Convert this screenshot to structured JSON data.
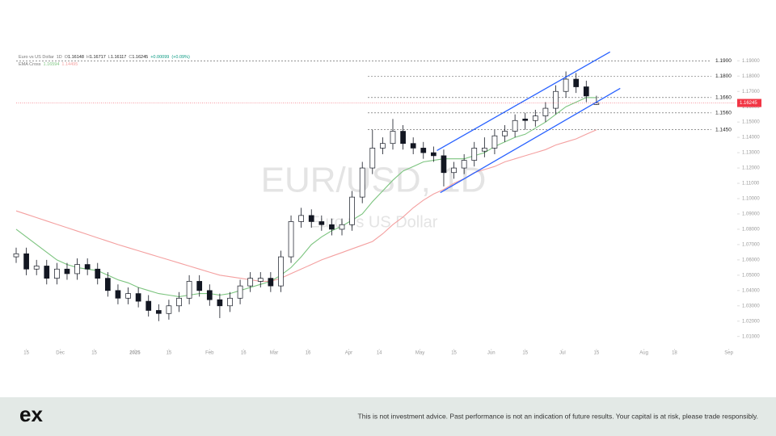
{
  "chart_data": {
    "type": "candlestick",
    "header": {
      "name": "Euro vs US Dollar",
      "interval": "1D",
      "ohlc_labels": [
        "O",
        "H",
        "L",
        "C"
      ],
      "change": "+0.00099",
      "change_pct": "(+0.09%)",
      "indicator": "EMA Cross"
    },
    "watermark": "EUR/USD, 1D",
    "watermark_subtitle": "Euro vs US Dollar",
    "xlim": [
      0,
      212
    ],
    "ylim": [
      1.003,
      1.197
    ],
    "xticks": [
      {
        "value": 3,
        "label": "15"
      },
      {
        "value": 13,
        "label": "Dec"
      },
      {
        "value": 23,
        "label": "15"
      },
      {
        "value": 35,
        "label": "2025"
      },
      {
        "value": 45,
        "label": "15"
      },
      {
        "value": 57,
        "label": "Feb"
      },
      {
        "value": 67,
        "label": "16"
      },
      {
        "value": 76,
        "label": "Mar"
      },
      {
        "value": 86,
        "label": "16"
      },
      {
        "value": 98,
        "label": "Apr"
      },
      {
        "value": 107,
        "label": "14"
      },
      {
        "value": 119,
        "label": "May"
      },
      {
        "value": 129,
        "label": "15"
      },
      {
        "value": 140,
        "label": "Jun"
      },
      {
        "value": 150,
        "label": "15"
      },
      {
        "value": 161,
        "label": "Jul"
      },
      {
        "value": 171,
        "label": "15"
      },
      {
        "value": 185,
        "label": "Aug"
      },
      {
        "value": 194,
        "label": "18"
      },
      {
        "value": 210,
        "label": "Sep"
      }
    ],
    "yticks": [
      {
        "value": 1.01,
        "label": "1.01000"
      },
      {
        "value": 1.02,
        "label": "1.02000"
      },
      {
        "value": 1.03,
        "label": "1.03000"
      },
      {
        "value": 1.04,
        "label": "1.04000"
      },
      {
        "value": 1.05,
        "label": "1.05000"
      },
      {
        "value": 1.06,
        "label": "1.06000"
      },
      {
        "value": 1.07,
        "label": "1.07000"
      },
      {
        "value": 1.08,
        "label": "1.08000"
      },
      {
        "value": 1.09,
        "label": "1.09000"
      },
      {
        "value": 1.1,
        "label": "1.10000"
      },
      {
        "value": 1.11,
        "label": "1.11000"
      },
      {
        "value": 1.12,
        "label": "1.12000"
      },
      {
        "value": 1.13,
        "label": "1.13000"
      },
      {
        "value": 1.14,
        "label": "1.14000"
      },
      {
        "value": 1.15,
        "label": "1.15000"
      },
      {
        "value": 1.16,
        "label": "1.16000"
      },
      {
        "value": 1.17,
        "label": "1.17000"
      },
      {
        "value": 1.18,
        "label": "1.18000"
      },
      {
        "value": 1.19,
        "label": "1.19000"
      }
    ],
    "x": [
      0,
      3,
      6,
      9,
      12,
      15,
      18,
      21,
      24,
      27,
      30,
      33,
      36,
      39,
      42,
      45,
      48,
      51,
      54,
      57,
      60,
      63,
      66,
      69,
      72,
      75,
      78,
      81,
      84,
      87,
      90,
      93,
      96,
      99,
      102,
      105,
      108,
      111,
      114,
      117,
      120,
      123,
      126,
      129,
      132,
      135,
      138,
      141,
      144,
      147,
      150,
      153,
      156,
      159,
      162,
      165,
      168,
      171
    ],
    "candles": [
      [
        1.062,
        1.068,
        1.058,
        1.064
      ],
      [
        1.064,
        1.068,
        1.05,
        1.054
      ],
      [
        1.054,
        1.06,
        1.05,
        1.056
      ],
      [
        1.056,
        1.06,
        1.044,
        1.048
      ],
      [
        1.048,
        1.058,
        1.044,
        1.054
      ],
      [
        1.054,
        1.058,
        1.047,
        1.051
      ],
      [
        1.051,
        1.061,
        1.047,
        1.057
      ],
      [
        1.057,
        1.061,
        1.05,
        1.054
      ],
      [
        1.054,
        1.058,
        1.044,
        1.048
      ],
      [
        1.048,
        1.052,
        1.036,
        1.04
      ],
      [
        1.04,
        1.044,
        1.031,
        1.035
      ],
      [
        1.035,
        1.042,
        1.031,
        1.038
      ],
      [
        1.038,
        1.042,
        1.029,
        1.033
      ],
      [
        1.033,
        1.037,
        1.023,
        1.027
      ],
      [
        1.027,
        1.031,
        1.02,
        1.025
      ],
      [
        1.025,
        1.034,
        1.021,
        1.03
      ],
      [
        1.03,
        1.039,
        1.026,
        1.035
      ],
      [
        1.035,
        1.05,
        1.031,
        1.046
      ],
      [
        1.046,
        1.05,
        1.036,
        1.04
      ],
      [
        1.04,
        1.044,
        1.03,
        1.034
      ],
      [
        1.034,
        1.038,
        1.022,
        1.03
      ],
      [
        1.03,
        1.039,
        1.026,
        1.035
      ],
      [
        1.035,
        1.047,
        1.031,
        1.043
      ],
      [
        1.043,
        1.052,
        1.039,
        1.048
      ],
      [
        1.046,
        1.052,
        1.042,
        1.048
      ],
      [
        1.048,
        1.052,
        1.039,
        1.043
      ],
      [
        1.043,
        1.066,
        1.039,
        1.062
      ],
      [
        1.062,
        1.089,
        1.058,
        1.085
      ],
      [
        1.085,
        1.094,
        1.081,
        1.089
      ],
      [
        1.089,
        1.093,
        1.081,
        1.085
      ],
      [
        1.085,
        1.089,
        1.079,
        1.083
      ],
      [
        1.083,
        1.087,
        1.076,
        1.08
      ],
      [
        1.08,
        1.087,
        1.076,
        1.083
      ],
      [
        1.083,
        1.105,
        1.079,
        1.101
      ],
      [
        1.101,
        1.124,
        1.097,
        1.12
      ],
      [
        1.12,
        1.145,
        1.116,
        1.133
      ],
      [
        1.133,
        1.14,
        1.129,
        1.136
      ],
      [
        1.136,
        1.152,
        1.132,
        1.144
      ],
      [
        1.144,
        1.148,
        1.132,
        1.136
      ],
      [
        1.136,
        1.14,
        1.129,
        1.133
      ],
      [
        1.133,
        1.137,
        1.126,
        1.13
      ],
      [
        1.13,
        1.134,
        1.124,
        1.128
      ],
      [
        1.128,
        1.132,
        1.108,
        1.117
      ],
      [
        1.117,
        1.124,
        1.113,
        1.12
      ],
      [
        1.12,
        1.129,
        1.116,
        1.125
      ],
      [
        1.125,
        1.137,
        1.121,
        1.133
      ],
      [
        1.131,
        1.14,
        1.127,
        1.133
      ],
      [
        1.133,
        1.145,
        1.129,
        1.141
      ],
      [
        1.141,
        1.148,
        1.137,
        1.144
      ],
      [
        1.144,
        1.155,
        1.14,
        1.151
      ],
      [
        1.152,
        1.156,
        1.145,
        1.151
      ],
      [
        1.151,
        1.158,
        1.147,
        1.154
      ],
      [
        1.154,
        1.163,
        1.15,
        1.159
      ],
      [
        1.159,
        1.174,
        1.155,
        1.17
      ],
      [
        1.17,
        1.183,
        1.166,
        1.178
      ],
      [
        1.178,
        1.182,
        1.169,
        1.173
      ],
      [
        1.173,
        1.177,
        1.163,
        1.167
      ],
      [
        1.16148,
        1.16717,
        1.16117,
        1.16245
      ]
    ],
    "up_color": "#ffffff",
    "down_color": "#131722",
    "series": [
      {
        "color": "#7cc47f",
        "values": [
          1.08,
          1.075,
          1.07,
          1.065,
          1.06,
          1.057,
          1.055,
          1.054,
          1.053,
          1.05,
          1.047,
          1.045,
          1.042,
          1.04,
          1.038,
          1.037,
          1.036,
          1.037,
          1.038,
          1.038,
          1.037,
          1.038,
          1.04,
          1.042,
          1.044,
          1.046,
          1.05,
          1.055,
          1.062,
          1.07,
          1.075,
          1.079,
          1.082,
          1.086,
          1.09,
          1.098,
          1.105,
          1.112,
          1.118,
          1.121,
          1.124,
          1.125,
          1.126,
          1.126,
          1.126,
          1.128,
          1.13,
          1.134,
          1.137,
          1.14,
          1.142,
          1.146,
          1.15,
          1.155,
          1.16,
          1.163,
          1.166,
          1.16594
        ]
      },
      {
        "color": "#f4a0a0",
        "values": [
          1.092,
          1.0898,
          1.0876,
          1.0854,
          1.0832,
          1.081,
          1.0788,
          1.0766,
          1.0744,
          1.0722,
          1.07,
          1.068,
          1.066,
          1.064,
          1.062,
          1.06,
          1.058,
          1.056,
          1.054,
          1.052,
          1.05,
          1.049,
          1.048,
          1.047,
          1.046,
          1.046,
          1.048,
          1.051,
          1.054,
          1.057,
          1.06,
          1.0624,
          1.0648,
          1.0672,
          1.0696,
          1.072,
          1.077,
          1.083,
          1.088,
          1.094,
          1.099,
          1.103,
          1.106,
          1.11,
          1.113,
          1.117,
          1.119,
          1.121,
          1.124,
          1.126,
          1.128,
          1.13,
          1.132,
          1.135,
          1.137,
          1.139,
          1.142,
          1.14495
        ]
      }
    ],
    "trendlines": [
      {
        "color": "#2962ff",
        "x": [
          124,
          175
        ],
        "y": [
          1.1314,
          1.1958
        ]
      },
      {
        "color": "#2962ff",
        "x": [
          125,
          178
        ],
        "y": [
          1.1039,
          1.172
        ]
      }
    ],
    "levels": [
      {
        "value": 1.19,
        "label": "1.1900"
      },
      {
        "value": 1.18,
        "label": "1.1800"
      },
      {
        "value": 1.166,
        "label": "1.1660"
      },
      {
        "value": 1.156,
        "label": "1.1560"
      },
      {
        "value": 1.145,
        "label": "1.1450"
      }
    ],
    "last_price_color": "#f23645"
  },
  "footer": {
    "logo": "ex",
    "disclaimer": "This is not investment advice. Past performance is not an indication of future results. Your capital is at risk, please trade responsibly."
  }
}
